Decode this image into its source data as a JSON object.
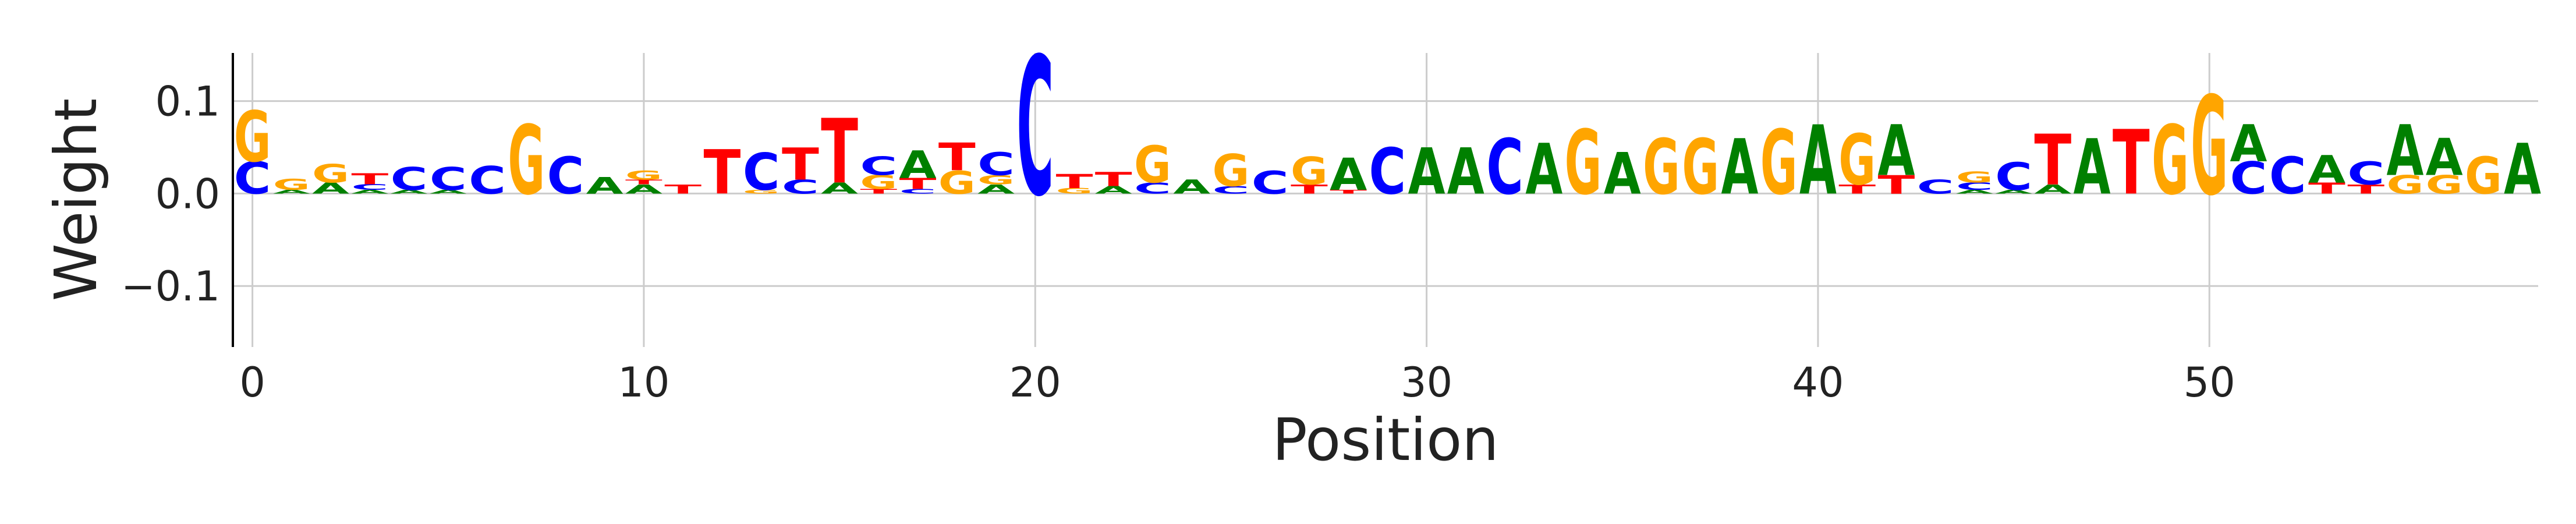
{
  "chart_data": {
    "type": "logo",
    "xlabel": "Position",
    "ylabel": "Weight",
    "xlim": [
      -0.5,
      58.4
    ],
    "ylim": [
      -0.166,
      0.152
    ],
    "xticks": [
      0,
      10,
      20,
      30,
      40,
      50
    ],
    "yticks": [
      {
        "value": -0.1,
        "label": "−0.1"
      },
      {
        "value": 0,
        "label": "0.0"
      },
      0.1
    ],
    "grid": true,
    "colors": {
      "A": "#008000",
      "C": "#0000ff",
      "G": "#ffa500",
      "T": "#ff0000"
    },
    "x": [
      0,
      1,
      2,
      3,
      4,
      5,
      6,
      7,
      8,
      9,
      10,
      11,
      12,
      13,
      14,
      15,
      16,
      17,
      18,
      19,
      20,
      21,
      22,
      23,
      24,
      25,
      26,
      27,
      28,
      29,
      30,
      31,
      32,
      33,
      34,
      35,
      36,
      37,
      38,
      39,
      40,
      41,
      42,
      43,
      44,
      45,
      46,
      47,
      48,
      49,
      50,
      51,
      52,
      53,
      54,
      55,
      56,
      57,
      58
    ],
    "stacks": [
      [
        {
          "letter": "C",
          "value": 0.035
        },
        {
          "letter": "G",
          "value": 0.055
        }
      ],
      [
        {
          "letter": "A",
          "value": 0.004
        },
        {
          "letter": "G",
          "value": 0.012
        }
      ],
      [
        {
          "letter": "A",
          "value": 0.012
        },
        {
          "letter": "G",
          "value": 0.02
        }
      ],
      [
        {
          "letter": "A",
          "value": 0.004
        },
        {
          "letter": "C",
          "value": 0.006
        },
        {
          "letter": "T",
          "value": 0.012
        }
      ],
      [
        {
          "letter": "A",
          "value": 0.004
        },
        {
          "letter": "C",
          "value": 0.025
        }
      ],
      [
        {
          "letter": "A",
          "value": 0.004
        },
        {
          "letter": "C",
          "value": 0.025
        }
      ],
      [
        {
          "letter": "C",
          "value": 0.03
        }
      ],
      [
        {
          "letter": "G",
          "value": 0.075
        }
      ],
      [
        {
          "letter": "C",
          "value": 0.04
        }
      ],
      [
        {
          "letter": "A",
          "value": 0.018
        }
      ],
      [
        {
          "letter": "A",
          "value": 0.01
        },
        {
          "letter": "T",
          "value": 0.005
        },
        {
          "letter": "G",
          "value": 0.01
        }
      ],
      [
        {
          "letter": "T",
          "value": 0.01
        }
      ],
      [
        {
          "letter": "T",
          "value": 0.048
        }
      ],
      [
        {
          "letter": "G",
          "value": 0.004
        },
        {
          "letter": "C",
          "value": 0.04
        }
      ],
      [
        {
          "letter": "C",
          "value": 0.015
        },
        {
          "letter": "T",
          "value": 0.035
        }
      ],
      [
        {
          "letter": "A",
          "value": 0.012
        },
        {
          "letter": "T",
          "value": 0.07
        }
      ],
      [
        {
          "letter": "T",
          "value": 0.005
        },
        {
          "letter": "G",
          "value": 0.015
        },
        {
          "letter": "C",
          "value": 0.02
        }
      ],
      [
        {
          "letter": "C",
          "value": 0.005
        },
        {
          "letter": "T",
          "value": 0.012
        },
        {
          "letter": "A",
          "value": 0.03
        }
      ],
      [
        {
          "letter": "G",
          "value": 0.025
        },
        {
          "letter": "T",
          "value": 0.03
        }
      ],
      [
        {
          "letter": "A",
          "value": 0.01
        },
        {
          "letter": "G",
          "value": 0.01
        },
        {
          "letter": "C",
          "value": 0.025
        }
      ],
      [
        {
          "letter": "C",
          "value": 0.15
        }
      ],
      [
        {
          "letter": "G",
          "value": 0.006
        },
        {
          "letter": "T",
          "value": 0.015
        }
      ],
      [
        {
          "letter": "A",
          "value": 0.008
        },
        {
          "letter": "T",
          "value": 0.015
        }
      ],
      [
        {
          "letter": "C",
          "value": 0.012
        },
        {
          "letter": "G",
          "value": 0.04
        }
      ],
      [
        {
          "letter": "A",
          "value": 0.015
        }
      ],
      [
        {
          "letter": "C",
          "value": 0.008
        },
        {
          "letter": "G",
          "value": 0.035
        }
      ],
      [
        {
          "letter": "C",
          "value": 0.025
        }
      ],
      [
        {
          "letter": "T",
          "value": 0.01
        },
        {
          "letter": "G",
          "value": 0.03
        }
      ],
      [
        {
          "letter": "T",
          "value": 0.004
        },
        {
          "letter": "A",
          "value": 0.035
        }
      ],
      [
        {
          "letter": "C",
          "value": 0.05
        }
      ],
      [
        {
          "letter": "A",
          "value": 0.05
        }
      ],
      [
        {
          "letter": "A",
          "value": 0.05
        }
      ],
      [
        {
          "letter": "C",
          "value": 0.06
        }
      ],
      [
        {
          "letter": "A",
          "value": 0.055
        }
      ],
      [
        {
          "letter": "G",
          "value": 0.07
        }
      ],
      [
        {
          "letter": "A",
          "value": 0.045
        }
      ],
      [
        {
          "letter": "G",
          "value": 0.06
        }
      ],
      [
        {
          "letter": "G",
          "value": 0.06
        }
      ],
      [
        {
          "letter": "A",
          "value": 0.06
        }
      ],
      [
        {
          "letter": "G",
          "value": 0.07
        }
      ],
      [
        {
          "letter": "A",
          "value": 0.075
        }
      ],
      [
        {
          "letter": "T",
          "value": 0.01
        },
        {
          "letter": "G",
          "value": 0.055
        }
      ],
      [
        {
          "letter": "T",
          "value": 0.02
        },
        {
          "letter": "A",
          "value": 0.055
        }
      ],
      [
        {
          "letter": "C",
          "value": 0.015
        }
      ],
      [
        {
          "letter": "A",
          "value": 0.004
        },
        {
          "letter": "C",
          "value": 0.008
        },
        {
          "letter": "G",
          "value": 0.012
        }
      ],
      [
        {
          "letter": "A",
          "value": 0.004
        },
        {
          "letter": "C",
          "value": 0.03
        }
      ],
      [
        {
          "letter": "A",
          "value": 0.01
        },
        {
          "letter": "T",
          "value": 0.055
        }
      ],
      [
        {
          "letter": "A",
          "value": 0.06
        }
      ],
      [
        {
          "letter": "T",
          "value": 0.07
        }
      ],
      [
        {
          "letter": "G",
          "value": 0.075
        }
      ],
      [
        {
          "letter": "G",
          "value": 0.107
        }
      ],
      [
        {
          "letter": "C",
          "value": 0.035
        },
        {
          "letter": "A",
          "value": 0.04
        }
      ],
      [
        {
          "letter": "C",
          "value": 0.04
        }
      ],
      [
        {
          "letter": "T",
          "value": 0.012
        },
        {
          "letter": "A",
          "value": 0.03
        }
      ],
      [
        {
          "letter": "T",
          "value": 0.01
        },
        {
          "letter": "C",
          "value": 0.025
        }
      ],
      [
        {
          "letter": "G",
          "value": 0.02
        },
        {
          "letter": "A",
          "value": 0.055
        }
      ],
      [
        {
          "letter": "G",
          "value": 0.02
        },
        {
          "letter": "A",
          "value": 0.04
        }
      ],
      [
        {
          "letter": "G",
          "value": 0.04
        }
      ],
      [
        {
          "letter": "A",
          "value": 0.055
        }
      ]
    ]
  }
}
